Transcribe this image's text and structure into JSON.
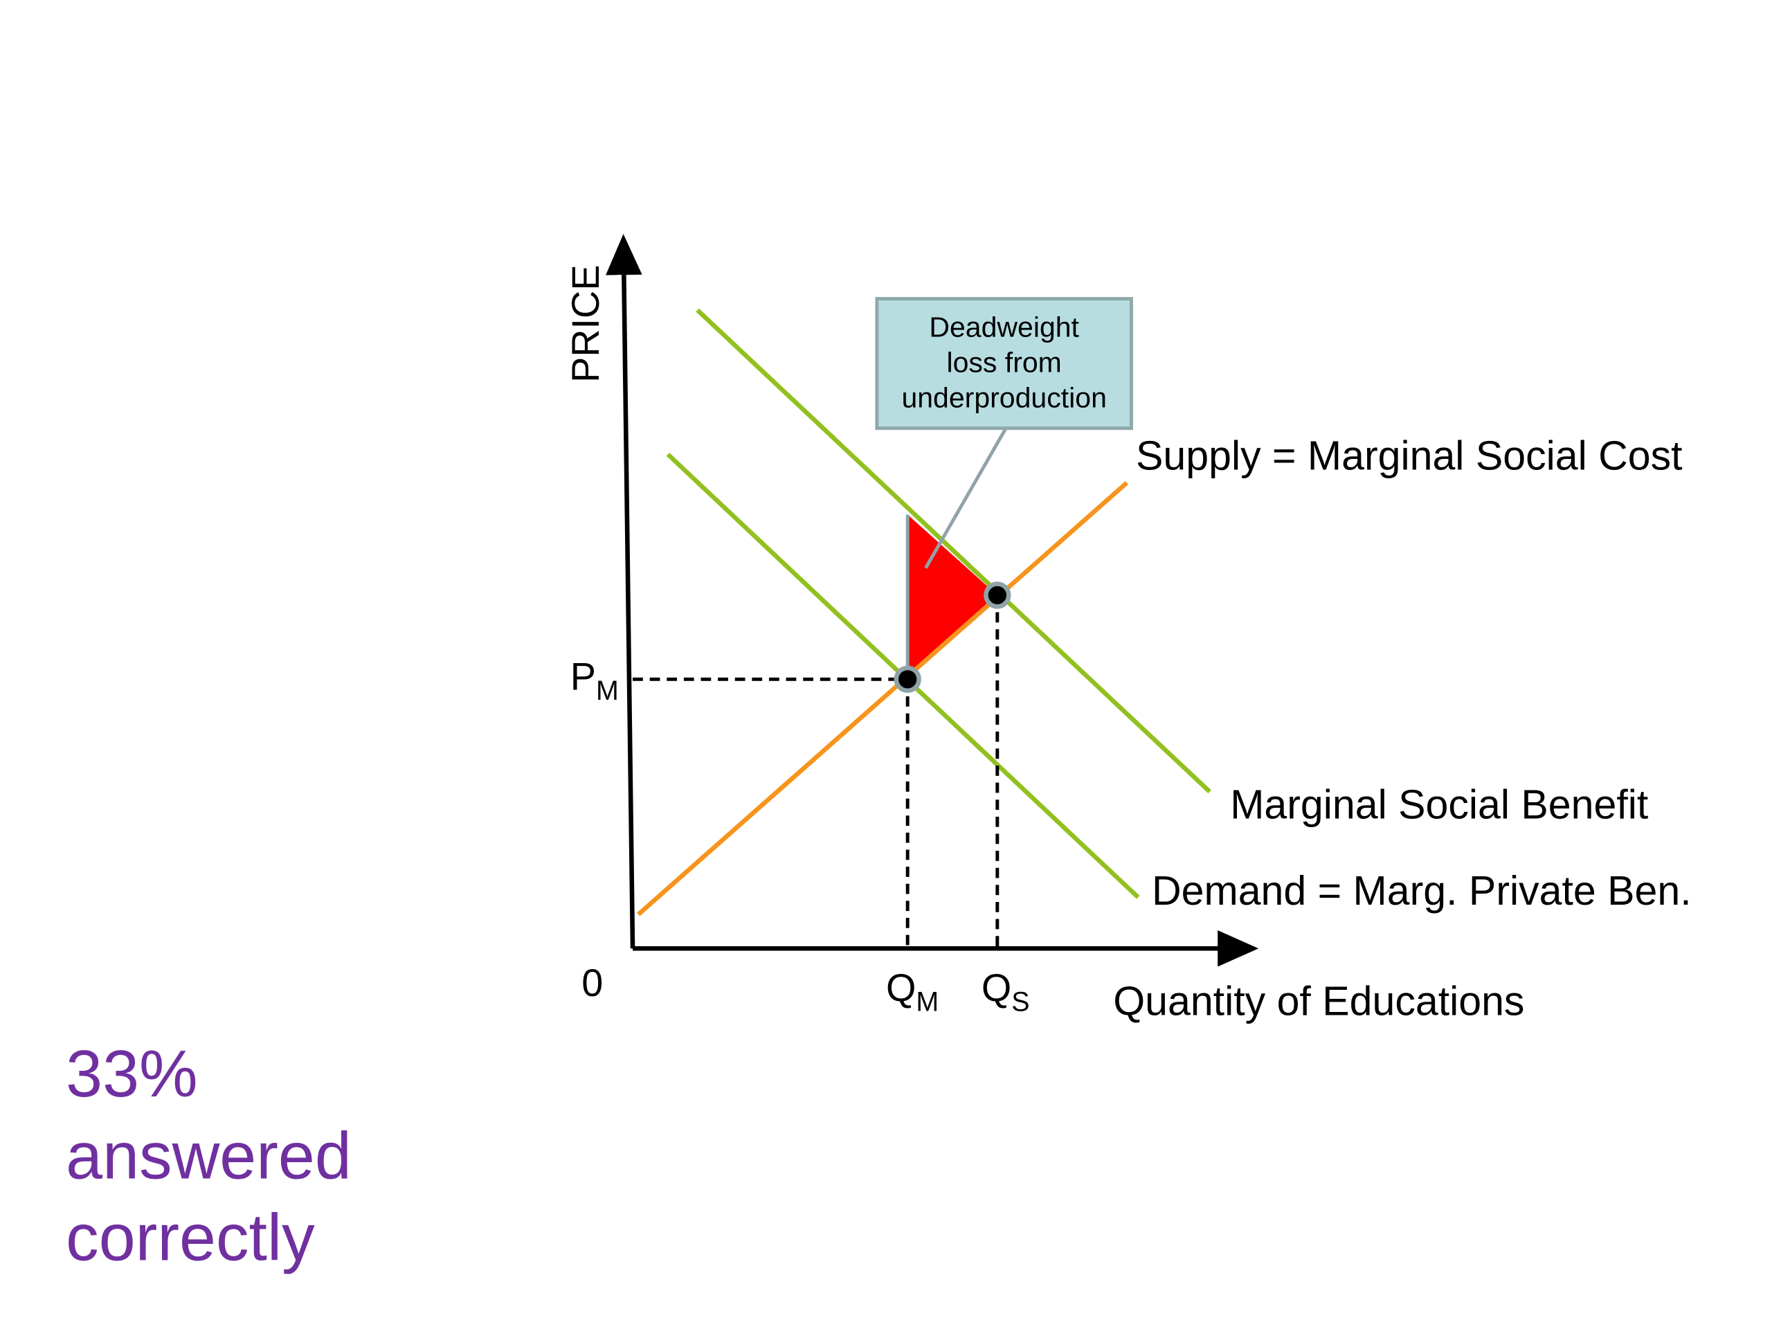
{
  "diagram": {
    "y_axis_label": "PRICE",
    "x_axis_label": "Quantity of Educations",
    "origin_label": "0",
    "price_label": {
      "main": "P",
      "sub": "M"
    },
    "quantity_labels": [
      {
        "main": "Q",
        "sub": "M"
      },
      {
        "main": "Q",
        "sub": "S"
      }
    ],
    "curves": {
      "supply": "Supply = Marginal Social Cost",
      "social_benefit": "Marginal Social Benefit",
      "demand": "Demand = Marg. Private Ben."
    },
    "callout": [
      "Deadweight",
      "loss from",
      "underproduction"
    ]
  },
  "result": [
    "33%",
    "answered",
    "correctly"
  ]
}
